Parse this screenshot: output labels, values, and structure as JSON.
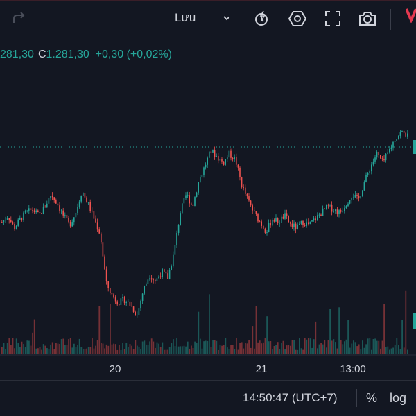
{
  "toolbar": {
    "redo_icon": "redo-arrow-icon",
    "save_label": "Lưu",
    "icons": [
      "alert-clock-icon",
      "settings-hexagon-icon",
      "fullscreen-icon",
      "camera-icon"
    ],
    "brand_icon": "brand-logo-icon"
  },
  "legend": {
    "close_prefix": "C",
    "partial_value": "281,30",
    "close_value": "1.281,30",
    "change": "+0,30 (+0,02%)"
  },
  "footer": {
    "time": "14:50:47 (UTC+7)",
    "percent_label": "%",
    "log_label": "log"
  },
  "colors": {
    "background": "#131722",
    "up": "#26a69a",
    "down": "#ef5350",
    "text": "#d1d4dc"
  },
  "chart_data": {
    "type": "candlestick",
    "x_ticks": [
      "20",
      "21",
      "13:00"
    ],
    "last_price_line": 1281.3,
    "volume_shown": true,
    "grid": false,
    "price_path": [
      1253,
      1255,
      1251,
      1254,
      1256,
      1257,
      1255,
      1258,
      1262,
      1259,
      1255,
      1252,
      1256,
      1263,
      1259,
      1254,
      1249,
      1233,
      1229,
      1227,
      1228,
      1226,
      1223,
      1231,
      1236,
      1234,
      1237,
      1235,
      1243,
      1256,
      1262,
      1258,
      1266,
      1271,
      1276,
      1274,
      1272,
      1275,
      1273,
      1265,
      1260,
      1256,
      1253,
      1250,
      1254,
      1253,
      1255,
      1252,
      1251,
      1253,
      1252,
      1254,
      1256,
      1258,
      1257,
      1256,
      1259,
      1262,
      1260,
      1266,
      1271,
      1275,
      1272,
      1276,
      1280,
      1282,
      1281
    ]
  }
}
